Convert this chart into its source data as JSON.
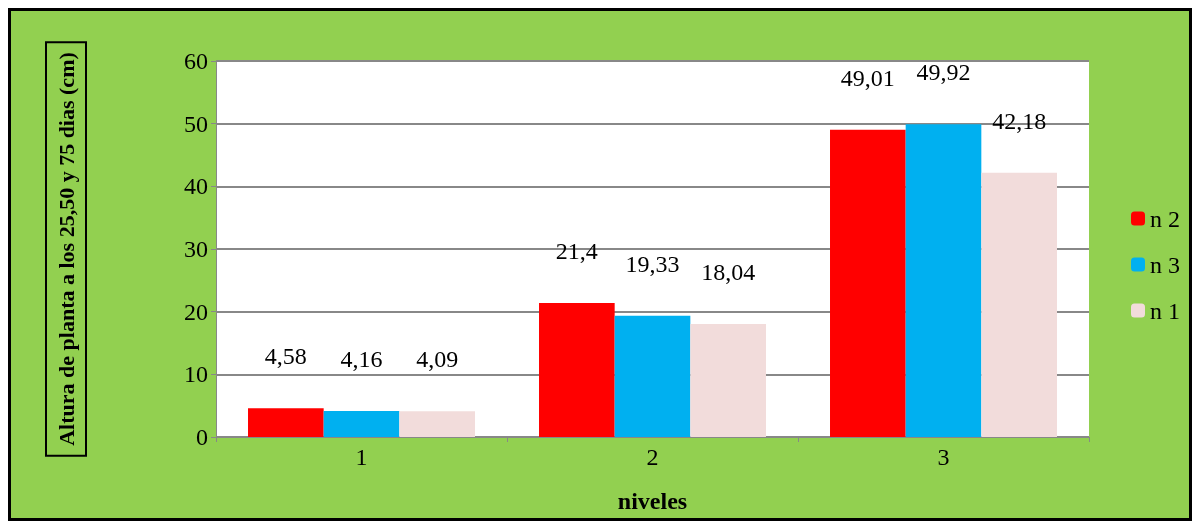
{
  "chart_data": {
    "type": "bar",
    "xlabel": "niveles",
    "ylabel": "Altura de planta a los 25,50 y 75 dias (cm)",
    "categories": [
      "1",
      "2",
      "3"
    ],
    "series": [
      {
        "name": "n 2",
        "color": "#ff0000",
        "values": [
          4.58,
          21.4,
          49.01
        ],
        "value_labels": [
          "4,58",
          "21,4",
          "49,01"
        ]
      },
      {
        "name": "n 3",
        "color": "#00b0f0",
        "values": [
          4.16,
          19.33,
          49.92
        ],
        "value_labels": [
          "4,16",
          "19,33",
          "49,92"
        ]
      },
      {
        "name": "n 1",
        "color": "#f2dcdb",
        "values": [
          4.09,
          18.04,
          42.18
        ],
        "value_labels": [
          "4,09",
          "18,04",
          "42,18"
        ]
      }
    ],
    "ylim": [
      0,
      60
    ],
    "yticks": [
      0,
      10,
      20,
      30,
      40,
      50,
      60
    ],
    "grid": "y",
    "legend": "right"
  }
}
